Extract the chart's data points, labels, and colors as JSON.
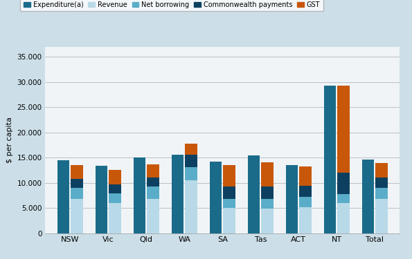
{
  "categories": [
    "NSW",
    "Vic",
    "Qld",
    "WA",
    "SA",
    "Tas",
    "ACT",
    "NT",
    "Total"
  ],
  "expenditure": [
    14400,
    13400,
    15000,
    15600,
    14200,
    15400,
    13500,
    29200,
    14600
  ],
  "revenue": [
    6800,
    5900,
    6800,
    10500,
    5000,
    4800,
    5200,
    6000,
    6800
  ],
  "net_borrow": [
    2200,
    2000,
    2400,
    2600,
    1800,
    2000,
    2000,
    1800,
    2200
  ],
  "comm_pay": [
    1800,
    1800,
    1800,
    2400,
    2400,
    2400,
    2200,
    4200,
    2000
  ],
  "gst": [
    2700,
    2800,
    2700,
    2200,
    4300,
    4900,
    3800,
    17200,
    2900
  ],
  "colors": {
    "Expenditure(a)": "#1a6b8a",
    "Revenue": "#b8d9e8",
    "Net borrowing": "#5aadc8",
    "Commonwealth payments": "#0d4060",
    "GST": "#c8570a"
  },
  "ylabel": "$ per capita",
  "ylim": [
    0,
    37000
  ],
  "yticks": [
    0,
    5000,
    10000,
    15000,
    20000,
    25000,
    30000,
    35000
  ],
  "ytick_labels": [
    "0",
    "5.000",
    "10.000",
    "15.000",
    "20.000",
    "25.000",
    "30.000",
    "35.000"
  ],
  "background_color": "#ccdfe8",
  "plot_background": "#f0f4f7",
  "bar_width": 0.32,
  "bar_gap": 0.04
}
